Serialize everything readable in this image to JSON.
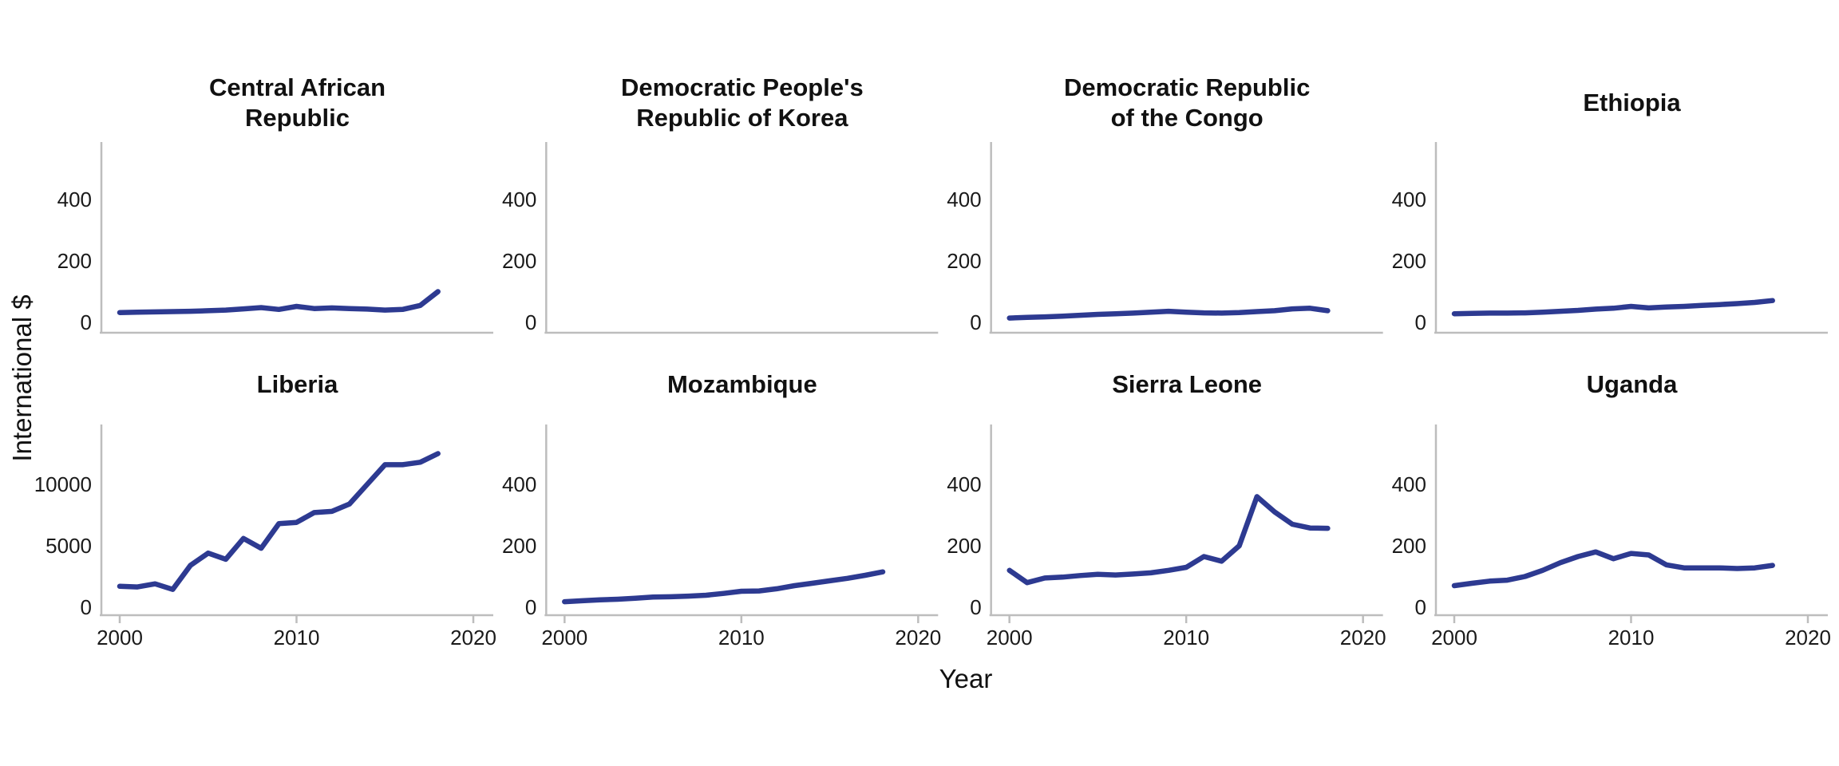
{
  "figure": {
    "y_axis_label": "International $",
    "x_axis_label": "Year",
    "line_color": "#2d3a91",
    "axis_color": "#bdbdbd",
    "text_color": "#1a1a1a",
    "title_color": "#111111",
    "background_color": "#ffffff"
  },
  "chart_data": {
    "type": "line",
    "title": "",
    "xlabel": "Year",
    "ylabel": "International $",
    "x": [
      2000,
      2001,
      2002,
      2003,
      2004,
      2005,
      2006,
      2007,
      2008,
      2009,
      2010,
      2011,
      2012,
      2013,
      2014,
      2015,
      2016,
      2017,
      2018
    ],
    "x_ticks": [
      2000,
      2010,
      2020
    ],
    "xlim": [
      1999,
      2021
    ],
    "grid": false,
    "legend": "none",
    "layout": "2 rows x 4 columns of facets, shared x axis ticks on bottom row only",
    "panels": [
      {
        "title": "Central African\nRepublic",
        "row": 0,
        "col": 0,
        "y_ticks": [
          0,
          200,
          400
        ],
        "ylim": [
          -34,
          587
        ],
        "values": [
          32,
          33,
          34,
          35,
          36,
          38,
          40,
          44,
          48,
          42,
          52,
          45,
          47,
          45,
          43,
          40,
          42,
          55,
          100
        ]
      },
      {
        "title": "Democratic People's\nRepublic of Korea",
        "row": 0,
        "col": 1,
        "y_ticks": [
          0,
          200,
          400
        ],
        "ylim": [
          -34,
          587
        ],
        "values": null
      },
      {
        "title": "Democratic Republic\nof the Congo",
        "row": 0,
        "col": 2,
        "y_ticks": [
          0,
          200,
          400
        ],
        "ylim": [
          -34,
          587
        ],
        "values": [
          14,
          16,
          18,
          20,
          23,
          26,
          28,
          30,
          33,
          36,
          33,
          31,
          30,
          32,
          35,
          38,
          44,
          46,
          38
        ]
      },
      {
        "title": "Ethiopia",
        "row": 0,
        "col": 3,
        "y_ticks": [
          0,
          200,
          400
        ],
        "ylim": [
          -34,
          587
        ],
        "values": [
          28,
          29,
          30,
          30,
          31,
          33,
          36,
          39,
          43,
          46,
          52,
          47,
          50,
          52,
          55,
          58,
          61,
          65,
          71
        ]
      },
      {
        "title": "Liberia",
        "row": 1,
        "col": 0,
        "y_ticks": [
          0,
          5000,
          10000
        ],
        "ylim": [
          -650,
          14900
        ],
        "values": [
          1700,
          1650,
          1900,
          1450,
          3400,
          4400,
          3900,
          5600,
          4800,
          6800,
          6900,
          7700,
          7800,
          8400,
          10000,
          11600,
          11600,
          11800,
          12500
        ]
      },
      {
        "title": "Mozambique",
        "row": 1,
        "col": 1,
        "y_ticks": [
          0,
          200,
          400
        ],
        "ylim": [
          -26,
          595
        ],
        "values": [
          18,
          21,
          24,
          26,
          29,
          33,
          34,
          36,
          39,
          45,
          52,
          53,
          60,
          70,
          78,
          86,
          94,
          104,
          115
        ]
      },
      {
        "title": "Sierra Leone",
        "row": 1,
        "col": 2,
        "y_ticks": [
          0,
          200,
          400
        ],
        "ylim": [
          -26,
          595
        ],
        "values": [
          120,
          80,
          95,
          98,
          103,
          107,
          105,
          108,
          112,
          120,
          130,
          165,
          150,
          200,
          360,
          310,
          270,
          258,
          257
        ]
      },
      {
        "title": "Uganda",
        "row": 1,
        "col": 3,
        "y_ticks": [
          0,
          200,
          400
        ],
        "ylim": [
          -26,
          595
        ],
        "values": [
          70,
          78,
          85,
          88,
          100,
          120,
          145,
          165,
          180,
          158,
          175,
          170,
          138,
          128,
          128,
          128,
          126,
          128,
          136
        ]
      }
    ]
  }
}
